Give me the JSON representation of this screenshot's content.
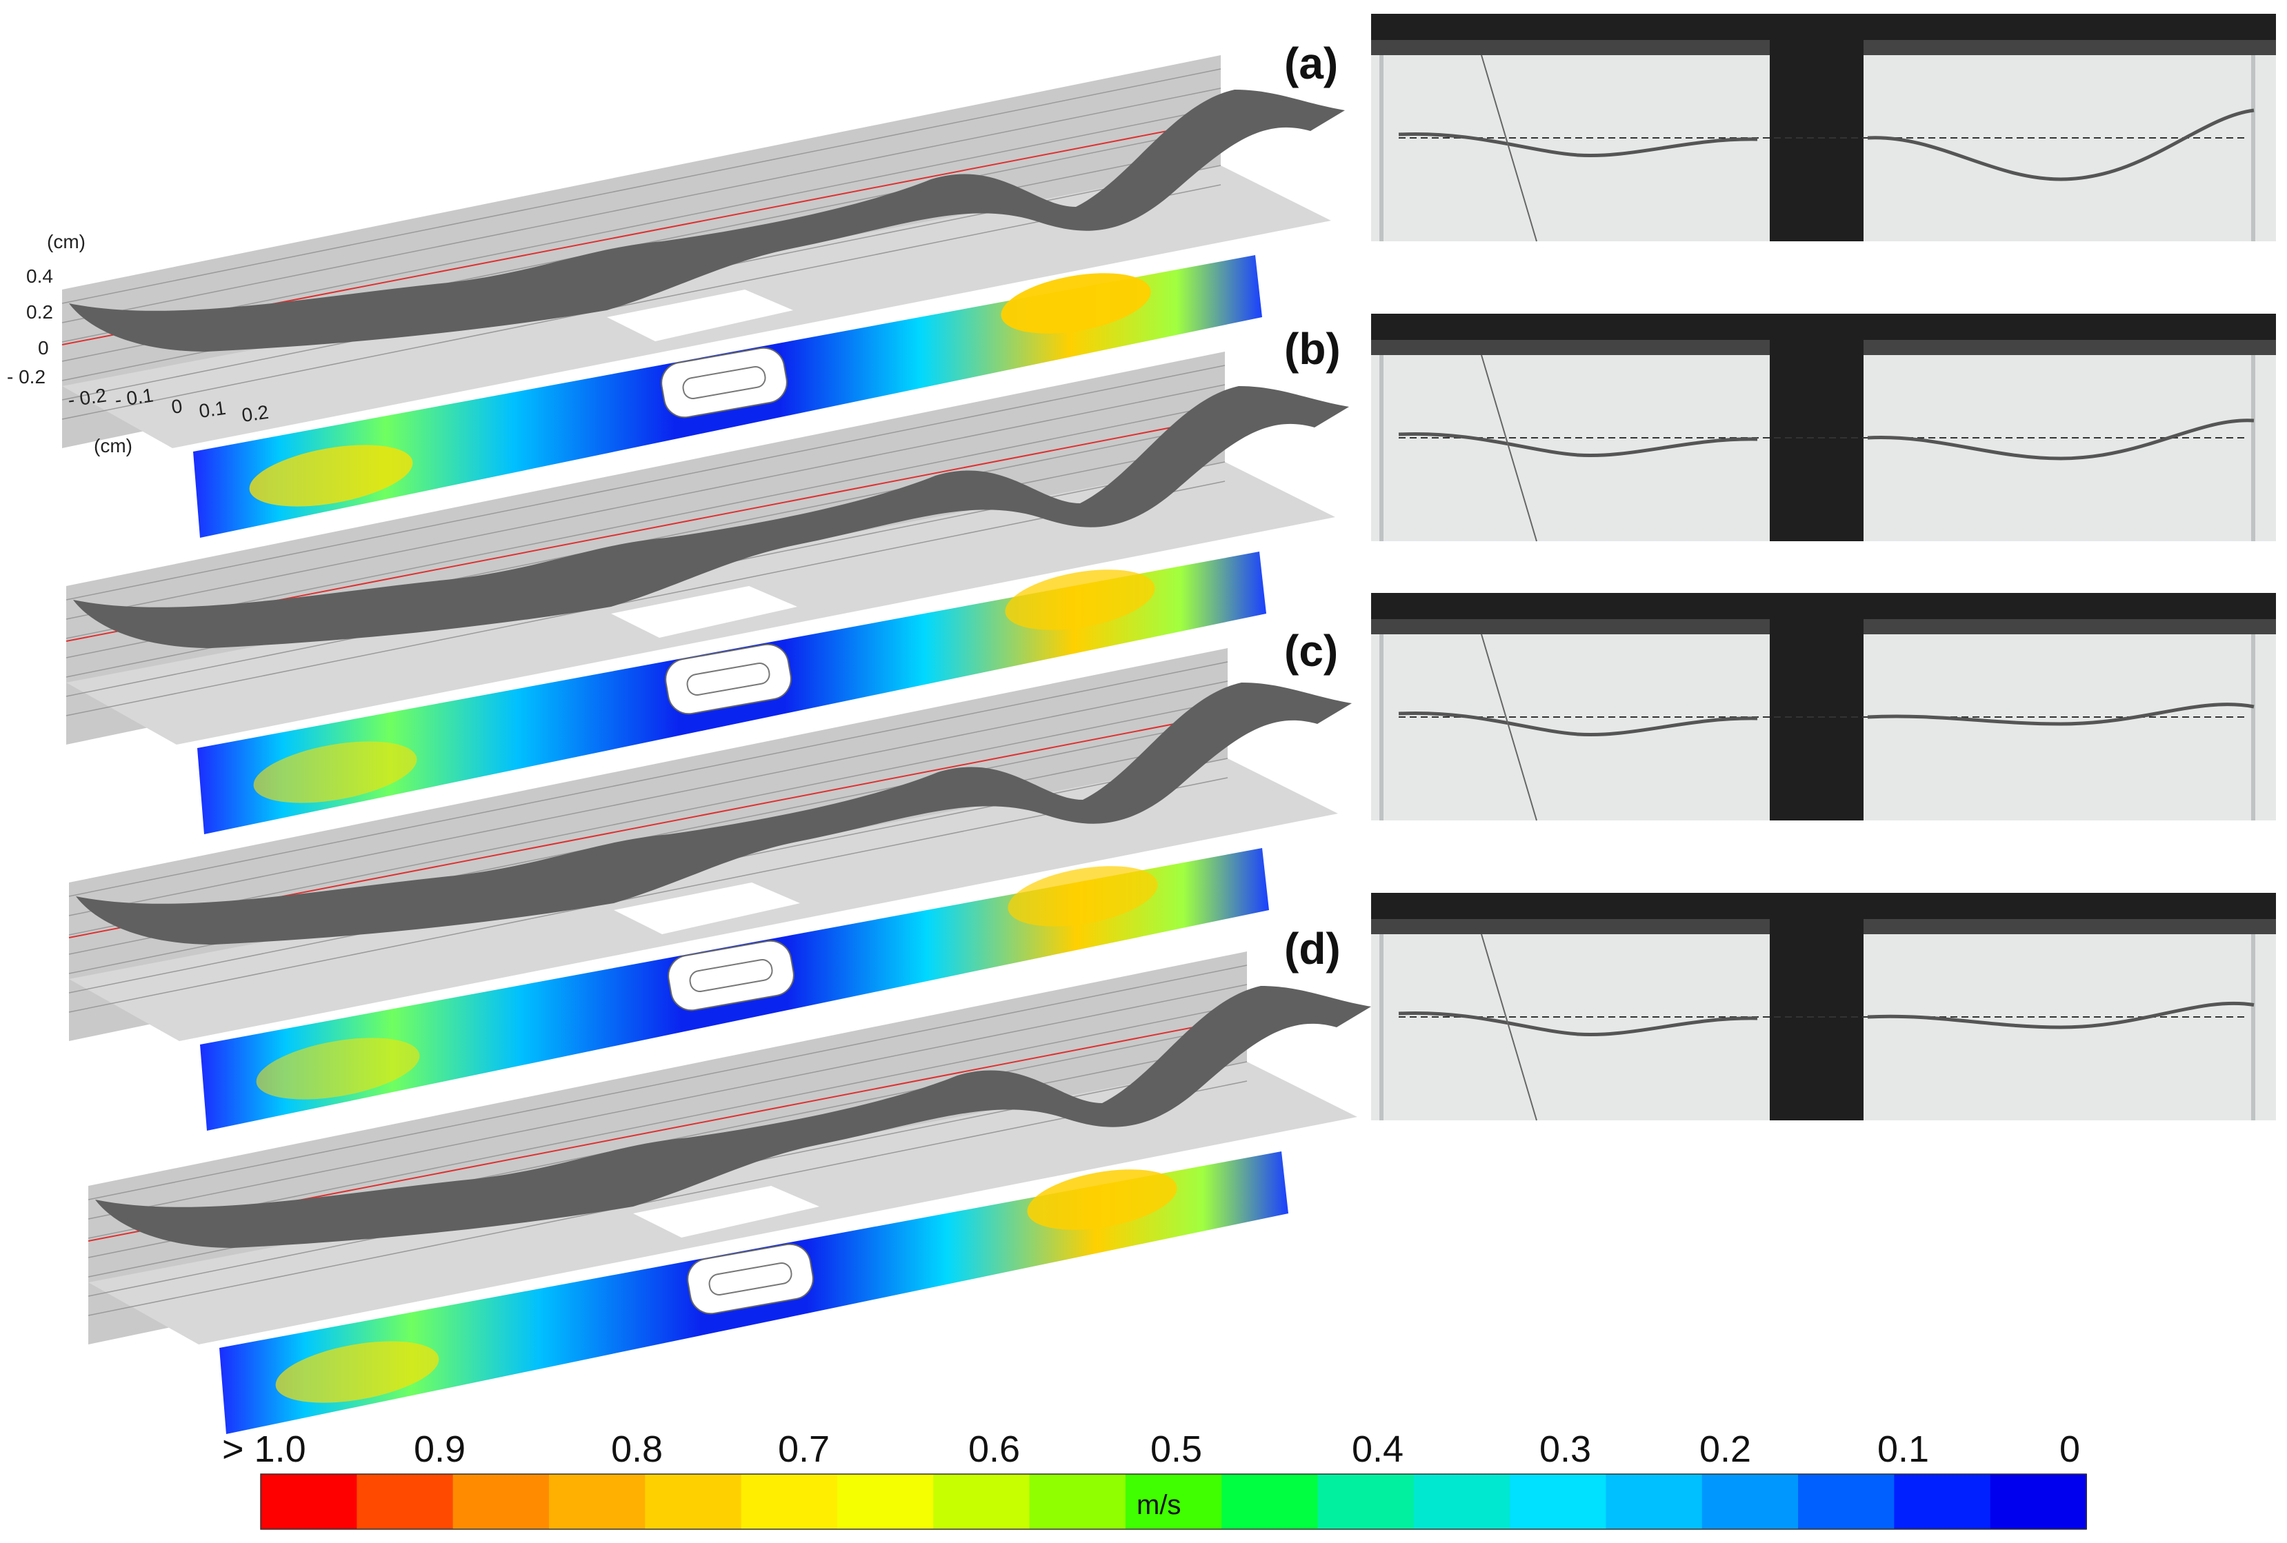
{
  "axis": {
    "z_unit": "(cm)",
    "z_ticks": [
      "0.4",
      "0.2",
      "0",
      "- 0.2"
    ],
    "y_ticks": [
      "- 0.2",
      "- 0.1",
      "0",
      "0.1",
      "0.2"
    ],
    "y_unit": "(cm)"
  },
  "panel_labels": [
    "(a)",
    "(b)",
    "(c)",
    "(d)"
  ],
  "colorbar": {
    "labels": [
      "> 1.0",
      "0.9",
      "0.8",
      "0.7",
      "0.6",
      "0.5",
      "0.4",
      "0.3",
      "0.2",
      "0.1",
      "0"
    ],
    "unit": "m/s",
    "colors": [
      "#ff0000",
      "#ff4a00",
      "#ff8c00",
      "#ffb000",
      "#ffd000",
      "#ffee00",
      "#f5ff00",
      "#c8ff00",
      "#90ff00",
      "#40ff00",
      "#00ff40",
      "#00f0a0",
      "#00e8d0",
      "#00e0ff",
      "#00c0ff",
      "#0098ff",
      "#0060ff",
      "#0020ff",
      "#0000ee"
    ]
  },
  "colors": {
    "wall": "#c9c9c9",
    "wall_line": "#9a9a9a",
    "red_line": "#e03030",
    "membrane": "#606060",
    "frame": "#1f1f1f",
    "photo_bg": "#e6e8e8"
  },
  "panels": [
    {
      "id": "a",
      "hot_fraction": 0.95
    },
    {
      "id": "b",
      "hot_fraction": 0.75
    },
    {
      "id": "c",
      "hot_fraction": 0.7
    },
    {
      "id": "d",
      "hot_fraction": 0.85
    }
  ]
}
